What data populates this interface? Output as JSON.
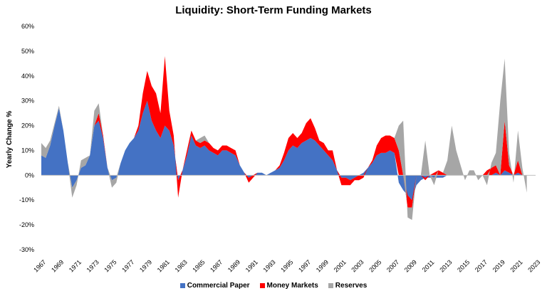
{
  "chart_data": {
    "type": "area",
    "title": "Liquidity: Short-Term Funding Markets",
    "ylabel": "Yearly Change %",
    "xlabel": "",
    "ylim": [
      -30,
      60
    ],
    "yticks": [
      -30,
      -20,
      -10,
      0,
      10,
      20,
      30,
      40,
      50,
      60
    ],
    "ytick_labels": [
      "-30%",
      "-20%",
      "-10%",
      "0%",
      "10%",
      "20%",
      "30%",
      "40%",
      "50%",
      "60%"
    ],
    "xlim": [
      1967,
      2023
    ],
    "xticks": [
      1967,
      1969,
      1971,
      1973,
      1975,
      1977,
      1979,
      1981,
      1983,
      1985,
      1987,
      1989,
      1991,
      1993,
      1995,
      1997,
      1999,
      2001,
      2003,
      2005,
      2007,
      2009,
      2011,
      2013,
      2015,
      2017,
      2019,
      2021,
      2023
    ],
    "xtick_labels": [
      "1967",
      "1969",
      "1971",
      "1973",
      "1975",
      "1977",
      "1979",
      "1981",
      "1983",
      "1985",
      "1987",
      "1989",
      "1991",
      "1993",
      "1995",
      "1997",
      "1999",
      "2001",
      "2003",
      "2005",
      "2007",
      "2009",
      "2011",
      "2013",
      "2015",
      "2017",
      "2019",
      "2021",
      "2023"
    ],
    "grid": false,
    "legend_position": "bottom",
    "stacked": true,
    "x": [
      1967.0,
      1967.5,
      1968.0,
      1968.5,
      1969.0,
      1969.5,
      1970.0,
      1970.5,
      1971.0,
      1971.5,
      1972.0,
      1972.5,
      1973.0,
      1973.5,
      1974.0,
      1974.5,
      1975.0,
      1975.5,
      1976.0,
      1976.5,
      1977.0,
      1977.5,
      1978.0,
      1978.5,
      1979.0,
      1979.5,
      1980.0,
      1980.5,
      1981.0,
      1981.5,
      1982.0,
      1982.5,
      1983.0,
      1983.5,
      1984.0,
      1984.5,
      1985.0,
      1985.5,
      1986.0,
      1986.5,
      1987.0,
      1987.5,
      1988.0,
      1988.5,
      1989.0,
      1989.5,
      1990.0,
      1990.5,
      1991.0,
      1991.5,
      1992.0,
      1992.5,
      1993.0,
      1993.5,
      1994.0,
      1994.5,
      1995.0,
      1995.5,
      1996.0,
      1996.5,
      1997.0,
      1997.5,
      1998.0,
      1998.5,
      1999.0,
      1999.5,
      2000.0,
      2000.5,
      2001.0,
      2001.5,
      2002.0,
      2002.5,
      2003.0,
      2003.5,
      2004.0,
      2004.5,
      2005.0,
      2005.5,
      2006.0,
      2006.5,
      2007.0,
      2007.5,
      2008.0,
      2008.5,
      2009.0,
      2009.5,
      2010.0,
      2010.5,
      2011.0,
      2011.5,
      2012.0,
      2012.5,
      2013.0,
      2013.5,
      2014.0,
      2014.5,
      2015.0,
      2015.5,
      2016.0,
      2016.5,
      2017.0,
      2017.5,
      2018.0,
      2018.5,
      2019.0,
      2019.5,
      2020.0,
      2020.5,
      2021.0,
      2021.5,
      2022.0
    ],
    "series": [
      {
        "name": "Commercial Paper",
        "color": "#4472C4",
        "values": [
          8,
          7,
          12,
          20,
          27,
          18,
          5,
          -5,
          -2,
          3,
          4,
          8,
          20,
          22,
          15,
          3,
          -2,
          -1,
          5,
          10,
          13,
          15,
          18,
          25,
          30,
          22,
          18,
          15,
          20,
          18,
          12,
          -2,
          2,
          8,
          16,
          12,
          11,
          12,
          10,
          9,
          8,
          10,
          10,
          9,
          8,
          4,
          1,
          -1,
          0,
          1,
          1,
          0,
          1,
          2,
          3,
          6,
          10,
          12,
          11,
          13,
          14,
          15,
          14,
          12,
          10,
          8,
          6,
          2,
          -1,
          -1,
          -2,
          -1,
          0,
          1,
          3,
          5,
          8,
          9,
          9,
          10,
          9,
          -3,
          -6,
          -8,
          -10,
          -4,
          -2,
          -1,
          -1,
          -1,
          -1,
          -1,
          0,
          0,
          0,
          0,
          0,
          0,
          0,
          0,
          0,
          0,
          0,
          1,
          0,
          2,
          1,
          0,
          1,
          0,
          0
        ]
      },
      {
        "name": "Money Markets",
        "color": "#FF0000",
        "values": [
          0,
          0,
          0,
          0,
          0,
          0,
          0,
          0,
          0,
          0,
          0,
          0,
          0,
          3,
          1,
          0,
          0,
          0,
          0,
          0,
          0,
          0,
          2,
          8,
          12,
          14,
          15,
          10,
          28,
          8,
          4,
          -7,
          0,
          2,
          2,
          2,
          2,
          2,
          3,
          2,
          2,
          2,
          2,
          2,
          2,
          0,
          0,
          -2,
          -1,
          0,
          0,
          0,
          0,
          0,
          1,
          3,
          5,
          5,
          4,
          4,
          7,
          8,
          5,
          2,
          3,
          2,
          4,
          0,
          -3,
          -3,
          -2,
          -1,
          -2,
          -1,
          0,
          1,
          4,
          6,
          7,
          6,
          6,
          10,
          0,
          -5,
          -3,
          0,
          0,
          -1,
          0,
          1,
          2,
          1,
          0,
          0,
          0,
          0,
          0,
          0,
          0,
          0,
          0,
          2,
          3,
          3,
          0,
          20,
          3,
          0,
          5,
          0,
          0
        ]
      },
      {
        "name": "Reserves",
        "color": "#A6A6A6",
        "values": [
          5,
          4,
          2,
          1,
          1,
          0,
          0,
          -4,
          -2,
          3,
          3,
          0,
          6,
          4,
          0,
          0,
          -3,
          -2,
          0,
          0,
          0,
          0,
          0,
          0,
          0,
          0,
          0,
          0,
          0,
          0,
          0,
          0,
          0,
          0,
          0,
          0,
          2,
          2,
          0,
          0,
          0,
          0,
          0,
          0,
          0,
          0,
          0,
          0,
          0,
          0,
          0,
          0,
          0,
          0,
          0,
          0,
          0,
          0,
          0,
          0,
          0,
          0,
          0,
          0,
          0,
          0,
          0,
          0,
          0,
          0,
          0,
          0,
          0,
          0,
          0,
          0,
          0,
          0,
          0,
          0,
          0,
          10,
          22,
          -4,
          -5,
          0,
          0,
          14,
          0,
          -3,
          0,
          0,
          6,
          20,
          10,
          4,
          -2,
          2,
          2,
          -2,
          0,
          -4,
          2,
          5,
          30,
          25,
          5,
          -3,
          12,
          3,
          -7
        ]
      }
    ]
  }
}
